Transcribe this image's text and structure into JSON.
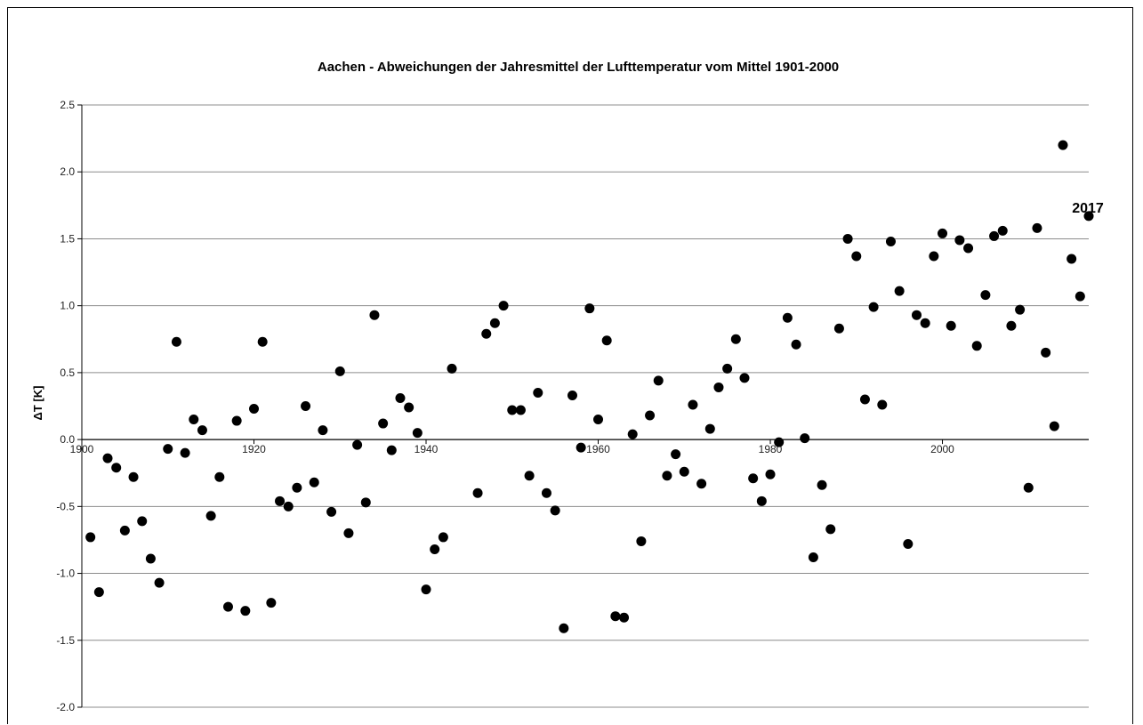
{
  "chart_data": {
    "type": "scatter",
    "title": "Aachen - Abweichungen der Jahresmittel der Lufttemperatur vom Mittel 1901-2000",
    "xlabel": "",
    "ylabel": "ΔT [K]",
    "xlim": [
      1900,
      2017
    ],
    "ylim": [
      -2.0,
      2.5
    ],
    "x_ticks": [
      "1900",
      "1920",
      "1940",
      "1960",
      "1980",
      "2000"
    ],
    "y_ticks": [
      "2.5",
      "2.0",
      "1.5",
      "1.0",
      "0.5",
      "0.0",
      "-0.5",
      "-1.0",
      "-1.5",
      "-2.0"
    ],
    "grid": "horizontal",
    "annotation": "2017",
    "marker_color": "#000000",
    "series": [
      {
        "x": [
          1901,
          1902,
          1903,
          1904,
          1905,
          1906,
          1907,
          1908,
          1909,
          1910,
          1911,
          1912,
          1913,
          1914,
          1915,
          1916,
          1917,
          1918,
          1919,
          1920,
          1921,
          1922,
          1923,
          1924,
          1925,
          1926,
          1927,
          1928,
          1929,
          1930,
          1931,
          1932,
          1933,
          1934,
          1935,
          1936,
          1937,
          1938,
          1939,
          1940,
          1941,
          1942,
          1943,
          1946,
          1947,
          1948,
          1949,
          1950,
          1951,
          1952,
          1953,
          1954,
          1955,
          1956,
          1957,
          1958,
          1959,
          1960,
          1961,
          1962,
          1963,
          1964,
          1965,
          1966,
          1967,
          1968,
          1969,
          1970,
          1971,
          1972,
          1973,
          1974,
          1975,
          1976,
          1977,
          1978,
          1979,
          1980,
          1981,
          1982,
          1983,
          1984,
          1985,
          1986,
          1987,
          1988,
          1989,
          1990,
          1991,
          1992,
          1993,
          1994,
          1995,
          1996,
          1997,
          1998,
          1999,
          2000,
          2001,
          2002,
          2003,
          2004,
          2005,
          2006,
          2007,
          2008,
          2009,
          2010,
          2011,
          2012,
          2013,
          2014,
          2015,
          2016,
          2017
        ],
        "y": [
          -0.73,
          -1.14,
          -0.14,
          -0.21,
          -0.68,
          -0.28,
          -0.61,
          -0.89,
          -1.07,
          -0.07,
          0.73,
          -0.1,
          0.15,
          0.07,
          -0.57,
          -0.28,
          -1.25,
          0.14,
          -1.28,
          0.23,
          0.73,
          -1.22,
          -0.46,
          -0.5,
          -0.36,
          0.25,
          -0.32,
          0.07,
          -0.54,
          0.51,
          -0.7,
          -0.04,
          -0.47,
          0.93,
          0.12,
          -0.08,
          0.31,
          0.24,
          0.05,
          -1.12,
          -0.82,
          -0.73,
          0.53,
          -0.4,
          0.79,
          0.87,
          1.0,
          0.22,
          0.22,
          -0.27,
          0.35,
          -0.4,
          -0.53,
          -1.41,
          0.33,
          -0.06,
          0.98,
          0.15,
          0.74,
          -1.32,
          -1.33,
          0.04,
          -0.76,
          0.18,
          0.44,
          -0.27,
          -0.11,
          -0.24,
          0.26,
          -0.33,
          0.08,
          0.39,
          0.53,
          0.75,
          0.46,
          -0.29,
          -0.46,
          -0.26,
          -0.02,
          0.91,
          0.71,
          0.01,
          -0.88,
          -0.34,
          -0.67,
          0.83,
          1.5,
          1.37,
          0.3,
          0.99,
          0.26,
          1.48,
          1.11,
          -0.78,
          0.93,
          0.87,
          1.37,
          1.54,
          0.85,
          1.49,
          1.43,
          0.7,
          1.08,
          1.52,
          1.56,
          0.85,
          0.97,
          -0.36,
          1.58,
          0.65,
          0.1,
          2.2,
          1.35,
          1.07,
          1.67
        ]
      }
    ]
  }
}
